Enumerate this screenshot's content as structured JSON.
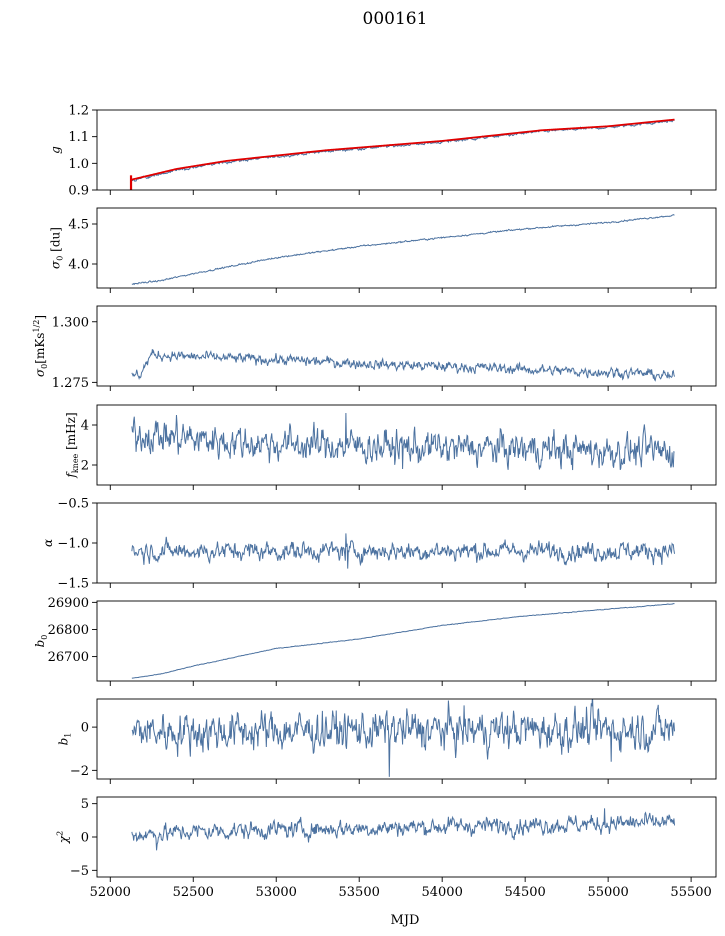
{
  "chart_data": {
    "type": "line",
    "title": "000161",
    "xlabel": "MJD",
    "xlim": [
      51920,
      55650
    ],
    "xticks": [
      52000,
      52500,
      53000,
      53500,
      54000,
      54500,
      55000,
      55500
    ],
    "xtick_labels": [
      "52000",
      "52500",
      "53000",
      "53500",
      "54000",
      "54500",
      "55000",
      "55500"
    ],
    "x_start": 52130,
    "x_end": 55400,
    "series_color": "#4c72a0",
    "fit_color": "#e00000",
    "panels": [
      {
        "id": "g",
        "ylabel_main": "g",
        "ylabel_sub": "",
        "ylabel_tail": "",
        "ylim": [
          0.9,
          1.2
        ],
        "yticks": [
          0.9,
          1.0,
          1.1,
          1.2
        ],
        "ytick_labels": [
          "0.9",
          "1.0",
          "1.1",
          "1.2"
        ],
        "trend": [
          [
            52130,
            0.935
          ],
          [
            52400,
            0.975
          ],
          [
            52700,
            1.005
          ],
          [
            53000,
            1.025
          ],
          [
            53300,
            1.045
          ],
          [
            53600,
            1.06
          ],
          [
            54000,
            1.08
          ],
          [
            54300,
            1.1
          ],
          [
            54600,
            1.12
          ],
          [
            55000,
            1.135
          ],
          [
            55400,
            1.16
          ]
        ],
        "noise": 0.002,
        "spikes": []
      },
      {
        "id": "sigma0_du",
        "ylabel_main": "σ",
        "ylabel_sub": "0",
        "ylabel_tail": " [du]",
        "ylim": [
          3.7,
          4.7
        ],
        "yticks": [
          4.0,
          4.5
        ],
        "ytick_labels": [
          "4.0",
          "4.5"
        ],
        "trend": [
          [
            52130,
            3.75
          ],
          [
            52300,
            3.79
          ],
          [
            52500,
            3.88
          ],
          [
            53000,
            4.08
          ],
          [
            53500,
            4.22
          ],
          [
            54000,
            4.33
          ],
          [
            54500,
            4.44
          ],
          [
            55000,
            4.52
          ],
          [
            55400,
            4.61
          ]
        ],
        "noise": 0.004,
        "spikes": []
      },
      {
        "id": "sigma0_mk",
        "ylabel_main": "σ",
        "ylabel_sub": "0",
        "ylabel_tail": "[mKs",
        "ylabel_sup": "1/2",
        "ylabel_end": "]",
        "ylim": [
          1.2735,
          1.3065
        ],
        "yticks": [
          1.275,
          1.3
        ],
        "ytick_labels": [
          "1.275",
          "1.300"
        ],
        "trend": [
          [
            52130,
            1.2775
          ],
          [
            52180,
            1.2785
          ],
          [
            52250,
            1.2865
          ],
          [
            52500,
            1.2855
          ],
          [
            52800,
            1.2848
          ],
          [
            53200,
            1.2838
          ],
          [
            53700,
            1.2822
          ],
          [
            54200,
            1.2812
          ],
          [
            54700,
            1.2798
          ],
          [
            55200,
            1.2788
          ],
          [
            55400,
            1.2772
          ]
        ],
        "noise": 0.0009,
        "spikes": []
      },
      {
        "id": "fknee",
        "ylabel_main": "f",
        "ylabel_sub": "knee",
        "ylabel_tail": " [mHz]",
        "ylim": [
          1.0,
          5.0
        ],
        "yticks": [
          2,
          4
        ],
        "ytick_labels": [
          "2",
          "4"
        ],
        "trend": [
          [
            52130,
            3.6
          ],
          [
            52500,
            3.3
          ],
          [
            53000,
            3.05
          ],
          [
            53500,
            2.95
          ],
          [
            54000,
            2.85
          ],
          [
            54500,
            2.8
          ],
          [
            55000,
            2.7
          ],
          [
            55400,
            2.7
          ]
        ],
        "noise": 0.35,
        "spikes": [
          [
            52400,
            4.5
          ],
          [
            53420,
            4.6
          ],
          [
            53760,
            1.8
          ]
        ]
      },
      {
        "id": "alpha",
        "ylabel_main": "α",
        "ylabel_sub": "",
        "ylabel_tail": "",
        "ylim": [
          -1.5,
          -0.5
        ],
        "yticks": [
          -1.5,
          -1.0,
          -0.5
        ],
        "ytick_labels": [
          "−1.5",
          "−1.0",
          "−0.5"
        ],
        "trend": [
          [
            52130,
            -1.1
          ],
          [
            55400,
            -1.1
          ]
        ],
        "noise": 0.05,
        "spikes": [
          [
            53420,
            -0.88
          ],
          [
            53430,
            -1.32
          ]
        ]
      },
      {
        "id": "b0",
        "ylabel_main": "b",
        "ylabel_sub": "0",
        "ylabel_tail": "",
        "ylim": [
          26610,
          26905
        ],
        "yticks": [
          26700,
          26800,
          26900
        ],
        "ytick_labels": [
          "26700",
          "26800",
          "26900"
        ],
        "trend": [
          [
            52130,
            26620
          ],
          [
            52300,
            26635
          ],
          [
            52500,
            26665
          ],
          [
            53000,
            26730
          ],
          [
            53500,
            26765
          ],
          [
            54000,
            26815
          ],
          [
            54500,
            26850
          ],
          [
            55000,
            26875
          ],
          [
            55400,
            26895
          ]
        ],
        "noise": 0.5,
        "spikes": []
      },
      {
        "id": "b1",
        "ylabel_main": "b",
        "ylabel_sub": "1",
        "ylabel_tail": "",
        "ylim": [
          -2.4,
          1.3
        ],
        "yticks": [
          -2,
          0
        ],
        "ytick_labels": [
          "−2",
          "0"
        ],
        "trend": [
          [
            52130,
            -0.2
          ],
          [
            55400,
            -0.1
          ]
        ],
        "noise": 0.38,
        "spikes": [
          [
            53680,
            -2.3
          ],
          [
            55020,
            -1.6
          ],
          [
            54900,
            1.1
          ]
        ]
      },
      {
        "id": "chi2",
        "ylabel_main": "χ",
        "ylabel_sub": "",
        "ylabel_tail": "",
        "ylabel_sup": "2",
        "ylim": [
          -6,
          6
        ],
        "yticks": [
          -5,
          0,
          5
        ],
        "ytick_labels": [
          "−5",
          "0",
          "5"
        ],
        "trend": [
          [
            52130,
            0.3
          ],
          [
            52500,
            0.8
          ],
          [
            53000,
            1.1
          ],
          [
            53500,
            1.3
          ],
          [
            54000,
            1.6
          ],
          [
            54500,
            1.8
          ],
          [
            55000,
            2.0
          ],
          [
            55400,
            2.2
          ]
        ],
        "noise": 0.55,
        "spikes": [
          [
            52280,
            -2.0
          ],
          [
            54980,
            4.3
          ]
        ]
      }
    ]
  }
}
